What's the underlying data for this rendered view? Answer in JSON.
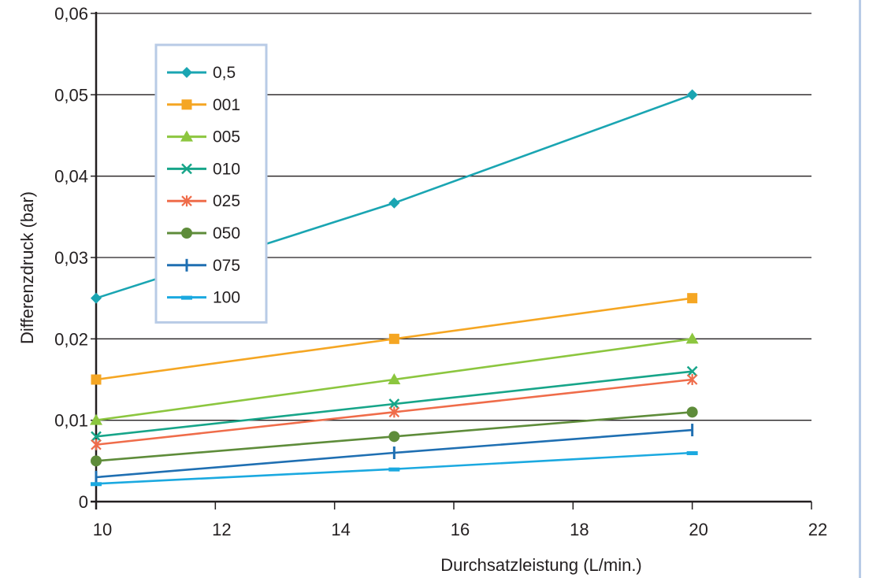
{
  "chart_data": {
    "type": "line",
    "title": "",
    "xlabel": "Durchsatzleistung (L/min.)",
    "ylabel": "Differenzdruck (bar)",
    "xlim": [
      10,
      22
    ],
    "ylim": [
      0,
      0.06
    ],
    "x_ticks": [
      "10",
      "12",
      "14",
      "16",
      "18",
      "20",
      "22"
    ],
    "y_ticks": [
      "0",
      "0,01",
      "0,02",
      "0,03",
      "0,04",
      "0,05",
      "0,06"
    ],
    "grid": "horizontal",
    "legend_position": "top-left",
    "x": [
      10,
      15,
      20
    ],
    "series": [
      {
        "name": "0,5",
        "values": [
          0.025,
          0.0367,
          0.05
        ],
        "color": "#1aa5b2",
        "marker": "diamond"
      },
      {
        "name": "001",
        "values": [
          0.015,
          0.02,
          0.025
        ],
        "color": "#f5a623",
        "marker": "square"
      },
      {
        "name": "005",
        "values": [
          0.01,
          0.015,
          0.02
        ],
        "color": "#8cc63f",
        "marker": "triangle"
      },
      {
        "name": "010",
        "values": [
          0.008,
          0.012,
          0.016
        ],
        "color": "#17a589",
        "marker": "x"
      },
      {
        "name": "025",
        "values": [
          0.007,
          0.011,
          0.015
        ],
        "color": "#ef6c4a",
        "marker": "asterisk"
      },
      {
        "name": "050",
        "values": [
          0.005,
          0.008,
          0.011
        ],
        "color": "#5e8c3a",
        "marker": "circle"
      },
      {
        "name": "075",
        "values": [
          0.003,
          0.006,
          0.0088
        ],
        "color": "#1f6fb2",
        "marker": "plus"
      },
      {
        "name": "100",
        "values": [
          0.0022,
          0.004,
          0.006
        ],
        "color": "#1ba9e0",
        "marker": "dash"
      }
    ]
  }
}
